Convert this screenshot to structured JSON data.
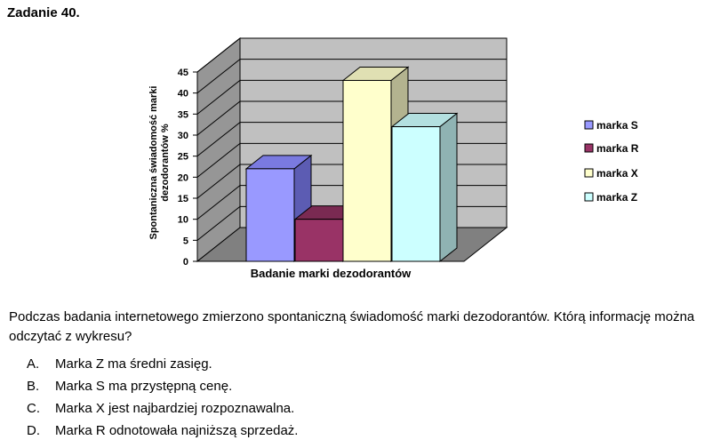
{
  "task": {
    "title": "Zadanie 40."
  },
  "chart_data": {
    "type": "bar",
    "title": "",
    "categories": [
      "marka S",
      "marka R",
      "marka X",
      "marka Z"
    ],
    "values": [
      22,
      10,
      43,
      32
    ],
    "xlabel": "Badanie marki dezodorantów",
    "ylabel": "Spontaniczna świadomość marki dezodorantów %",
    "ylabel_lines": [
      "Spontaniczna świadomość marki",
      "dezodorantów %"
    ],
    "ylim": [
      0,
      45
    ],
    "yticks": [
      "0",
      "5",
      "10",
      "15",
      "20",
      "25",
      "30",
      "35",
      "40",
      "45"
    ],
    "grid": true,
    "three_d": true,
    "legend_position": "right",
    "colors": {
      "front": [
        "#9999ff",
        "#993366",
        "#ffffcc",
        "#ccffff"
      ],
      "side": [
        "#5c5cb3",
        "#6b2447",
        "#b3b38f",
        "#8fb3b3"
      ],
      "top": [
        "#7a7ae0",
        "#7a2a52",
        "#e0e0b3",
        "#b3e0e0"
      ],
      "wall": "#c0c0c0",
      "side_wall": "#969696",
      "floor": "#808080"
    }
  },
  "question": {
    "text": "Podczas badania internetowego zmierzono spontaniczną świadomość marki dezodorantów. Którą informację można odczytać z wykresu?"
  },
  "options": [
    {
      "letter": "A.",
      "text": "Marka Z ma średni zasięg."
    },
    {
      "letter": "B.",
      "text": "Marka S ma przystępną cenę."
    },
    {
      "letter": "C.",
      "text": "Marka X jest najbardziej rozpoznawalna."
    },
    {
      "letter": "D.",
      "text": "Marka R odnotowała najniższą sprzedaż."
    }
  ]
}
